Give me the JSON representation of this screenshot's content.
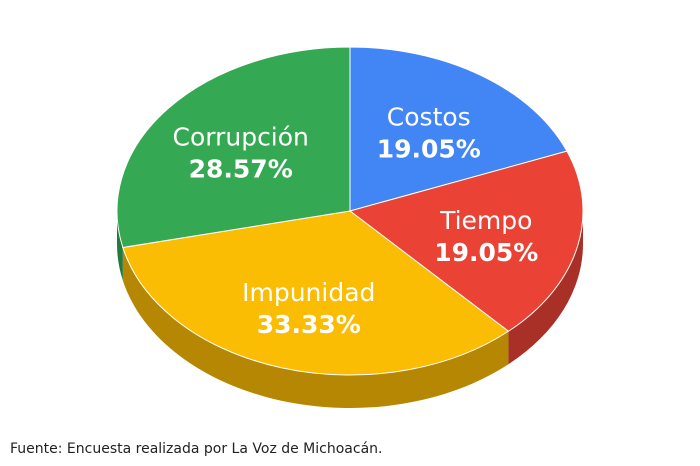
{
  "chart_data": {
    "type": "pie",
    "title": "",
    "slices": [
      {
        "label": "Costos",
        "value": 19.05,
        "display": "19.05%",
        "color": "#4285F4"
      },
      {
        "label": "Tiempo",
        "value": 19.05,
        "display": "19.05%",
        "color": "#EA4335"
      },
      {
        "label": "Impunidad",
        "value": 33.33,
        "display": "33.33%",
        "color": "#FBBC04"
      },
      {
        "label": "Corrupción",
        "value": 28.57,
        "display": "28.57%",
        "color": "#34A853"
      }
    ],
    "legend": "none",
    "style": "3d"
  },
  "footer": {
    "source": "Fuente: Encuesta realizada por La Voz de Michoacán."
  }
}
